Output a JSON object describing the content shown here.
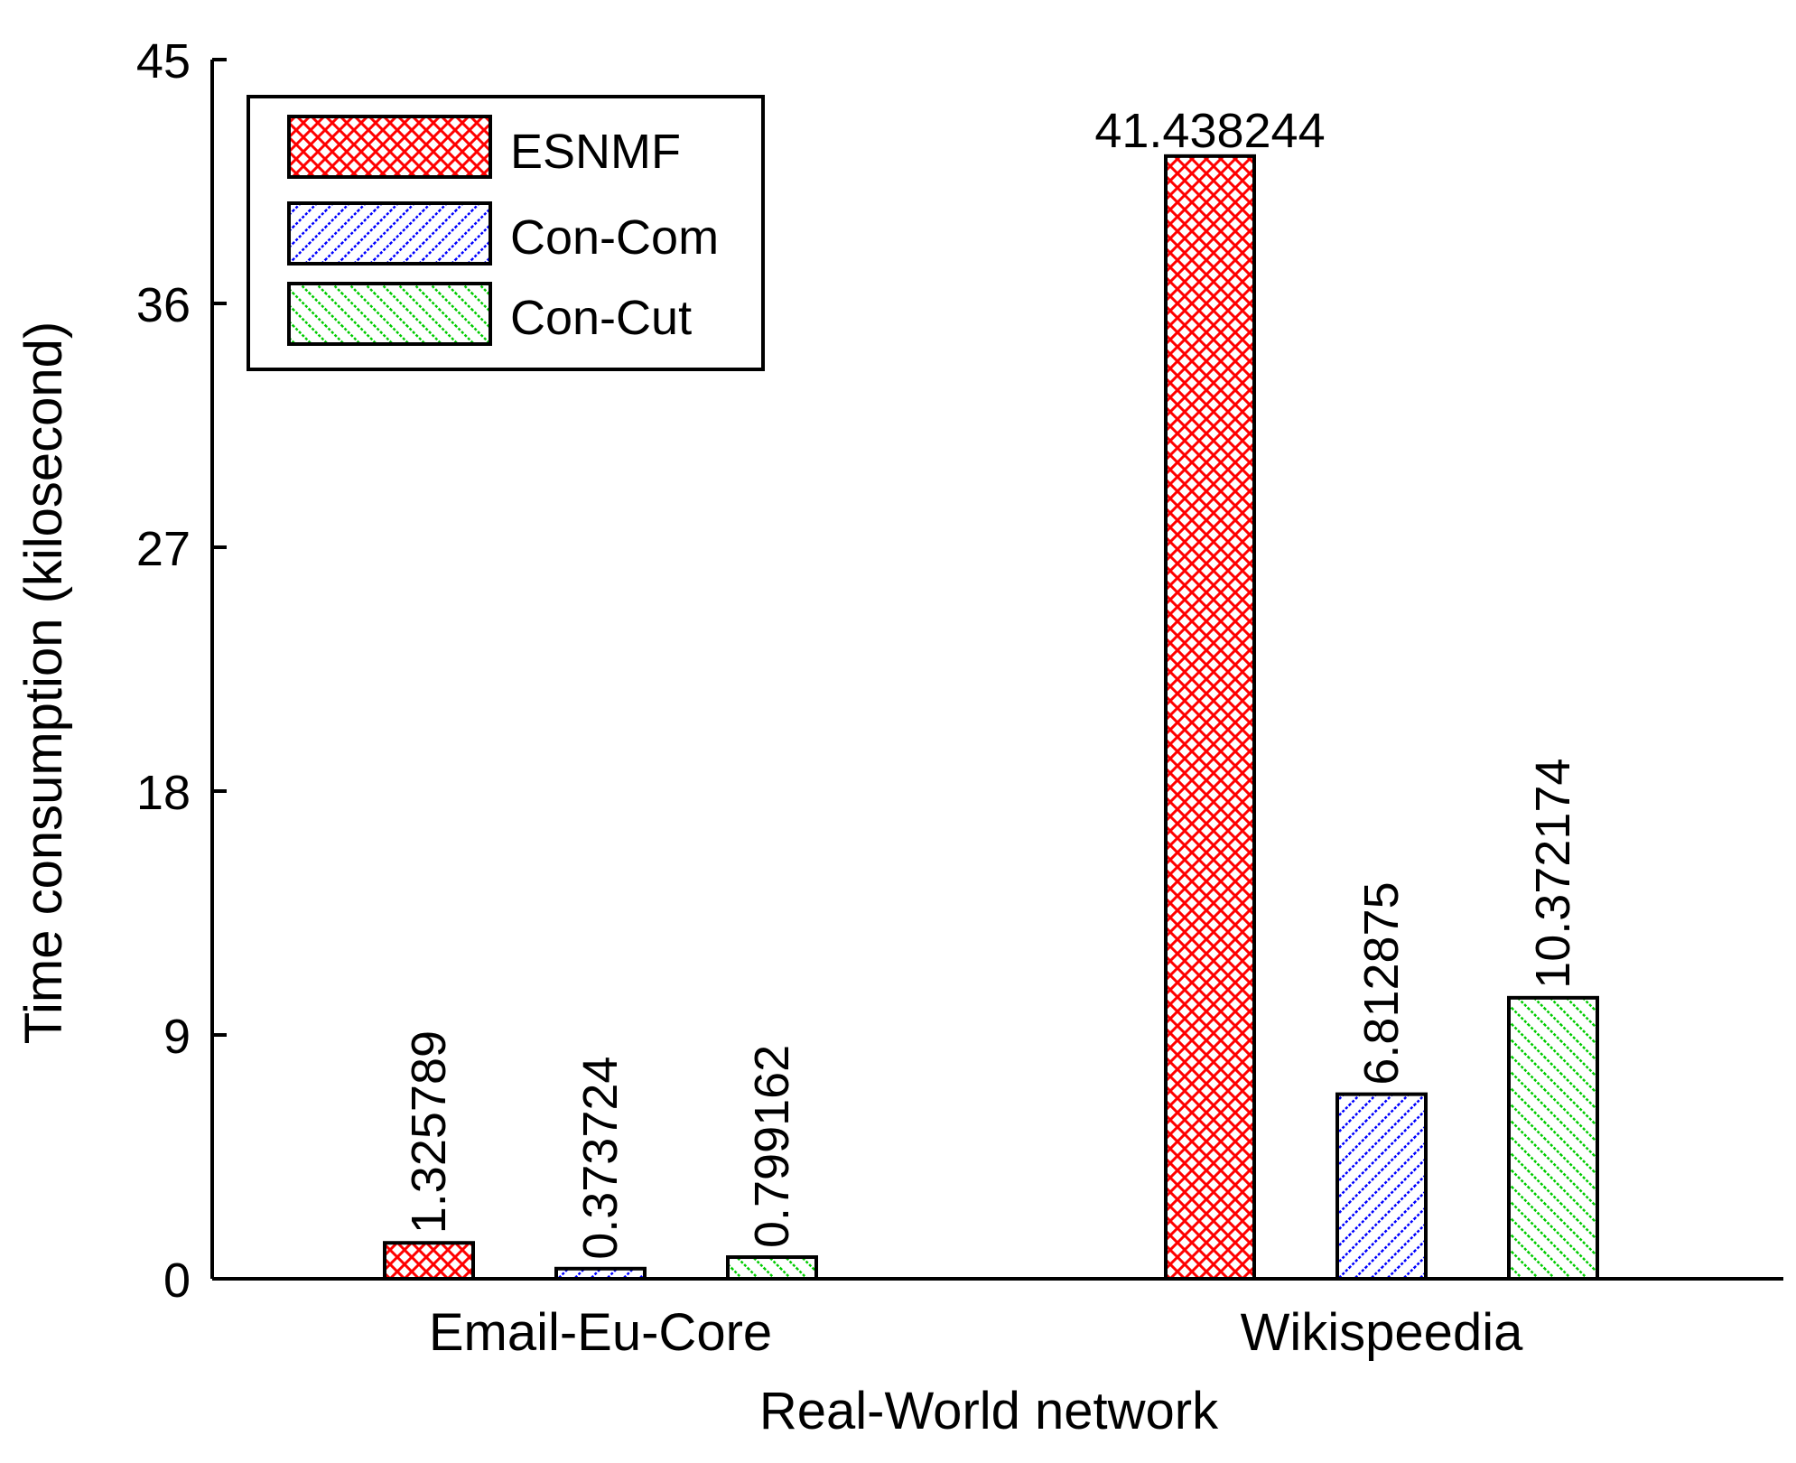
{
  "chart_data": {
    "type": "bar",
    "categories": [
      "Email-Eu-Core",
      "Wikispeedia"
    ],
    "series": [
      {
        "name": "ESNMF",
        "values": [
          1.325789,
          41.438244
        ],
        "color": "#ff0000",
        "pattern": "crosshatch",
        "labels": [
          "1.325789",
          "41.438244"
        ]
      },
      {
        "name": "Con-Com",
        "values": [
          0.373724,
          6.812875
        ],
        "color": "#0000ff",
        "pattern": "forward-diagonal",
        "labels": [
          "0.373724",
          "6.812875"
        ]
      },
      {
        "name": "Con-Cut",
        "values": [
          0.799162,
          10.372174
        ],
        "color": "#00cc00",
        "pattern": "back-diagonal",
        "labels": [
          "0.799162",
          "10.372174"
        ]
      }
    ],
    "xlabel": "Real-World network",
    "ylabel": "Time consumption (kilosecond)",
    "ylim": [
      0,
      45
    ],
    "yticks": [
      0,
      9,
      18,
      27,
      36,
      45
    ],
    "grid": false,
    "legend_position": "top-left"
  }
}
